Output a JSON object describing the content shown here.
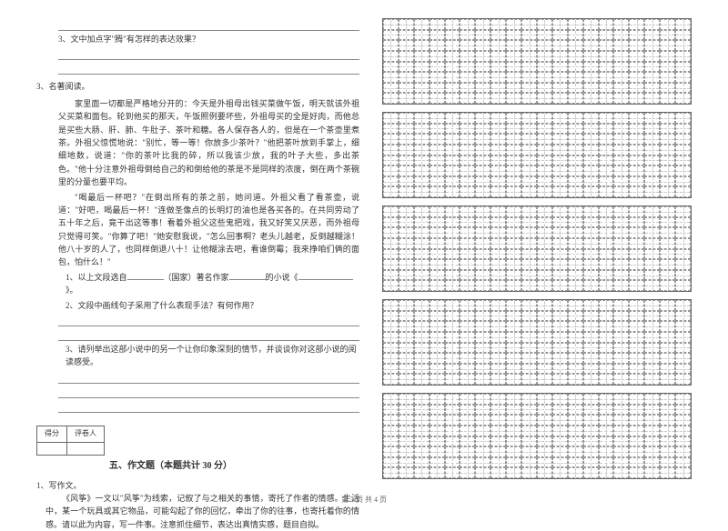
{
  "leftColumn": {
    "q3_sub3": "3、文中加点字\"腾\"有怎样的表达效果？",
    "q3_header": "3、名著阅读。",
    "passage": {
      "p1": "家里面一切都是严格地分开的：今天是外祖母出钱买菜做午饭，明天就该外祖父买菜和面包。轮到他买的那天，午饭照例要坏些，外祖母买的全是好肉，而他总是买些大肠、肝、肺、牛肚子、茶叶和糖。各人保存各人的，但是在一个茶壶里煮茶。外祖父惊慌地说：\"别忙，等一等！你放多少茶叶？\"他把茶叶放到手掌上，细细地数，说道：\"你的茶叶比我的碎，所以我该少放，我的叶子大些，多出茶色。\"他十分注意外祖母倒给自己的和倒给他的茶是不是同样的浓度，倒在两个茶碗里的分量也要平均。",
      "p2": "\"喝最后一杯吧？\"在倒出所有的茶之前，她问道。外祖父看了看茶壶，说道：\"好吧，喝最后一杯！\"连做圣像点的长明灯的油也是各买各的。在共同劳动了五十年之后，竟干出这等事！看着外祖父这些鬼把戏，我又好笑又厌恶，而外祖母只觉得可笑。\"你算了吧！\"她安慰我说，\"怎么回事啊？老头儿越老，反倒越糊涂！他八十岁的人了，也同样倒退八十！让他糊涂去吧，看谁倒霉；我来挣咱们俩的面包，怕什么！\""
    },
    "sub_q1_prefix": "1、以上文段选自",
    "sub_q1_middle": "（国家）著名作家",
    "sub_q1_suffix": "的小说《",
    "sub_q1_end": "》。",
    "sub_q2": "2、文段中画线句子采用了什么表现手法？有何作用？",
    "sub_q3": "3、请列举出这部小说中的另一个让你印象深刻的情节，并谈谈你对这部小说的阅读感受。",
    "scoreLabels": {
      "score": "得分",
      "reviewer": "评卷人"
    },
    "section5": "五、作文题（本题共计 30 分）",
    "writing_q": "1、写作文。",
    "writing_text": "《风筝》一文以\"风筝\"为线索，记叙了与之相关的事情，寄托了作者的情感。生活中，某一个玩具或其它物品，可能勾起了你的回忆，牵出了你的往事，也寄托着你的情感。请以此为内容，写一件事。注意抓住细节，表达出真情实感，题目自拟。"
  },
  "footer": "第 3 页 共 4 页",
  "gridConfig": {
    "blocks": 5,
    "cols": 20,
    "rows": 8,
    "borderColor": "#666666",
    "dashColor": "#999999"
  }
}
